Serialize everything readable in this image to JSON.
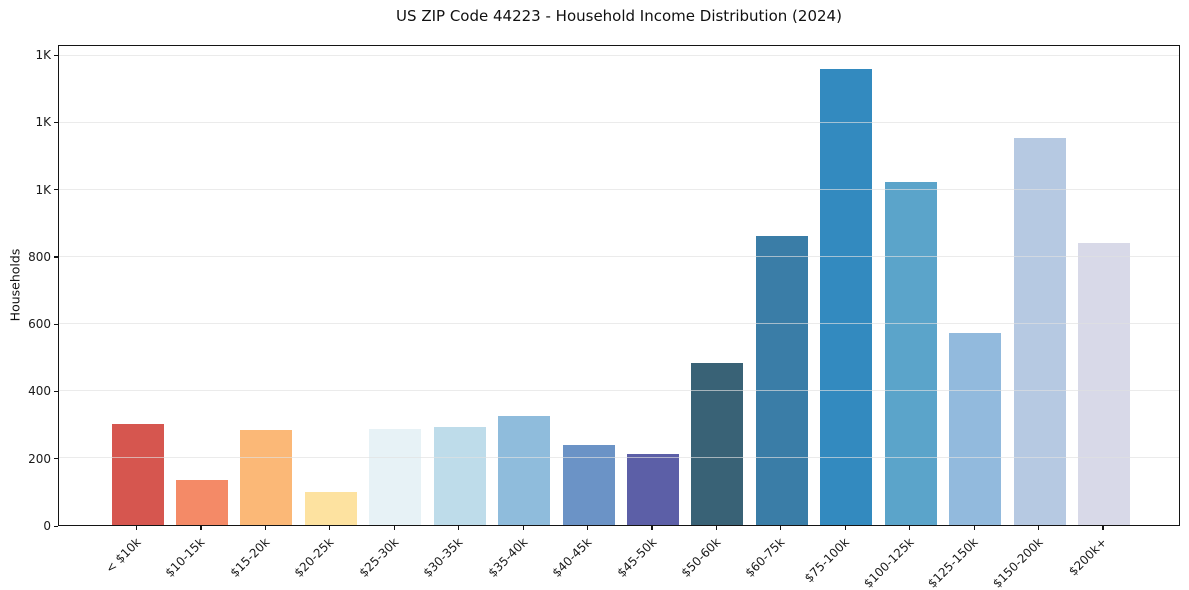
{
  "chart_data": {
    "type": "bar",
    "title": "US ZIP Code 44223 - Household Income Distribution (2024)",
    "xlabel": "",
    "ylabel": "Households",
    "categories": [
      "< $10k",
      "$10-15k",
      "$15-20k",
      "$20-25k",
      "$25-30k",
      "$30-35k",
      "$35-40k",
      "$40-45k",
      "$45-50k",
      "$50-60k",
      "$60-75k",
      "$75-100k",
      "$100-125k",
      "$125-150k",
      "$150-200k",
      "$200k+"
    ],
    "values": [
      302,
      135,
      284,
      98,
      287,
      292,
      324,
      240,
      212,
      483,
      864,
      1362,
      1025,
      573,
      1155,
      843
    ],
    "bar_colors": [
      "#d6564f",
      "#f48a67",
      "#fbb877",
      "#fde2a0",
      "#e7f2f6",
      "#bedcea",
      "#8fbcdc",
      "#6b93c6",
      "#5c5fa7",
      "#396276",
      "#3a7da7",
      "#338abf",
      "#5ba4ca",
      "#92badd",
      "#b6c9e2",
      "#d8d9e8"
    ],
    "ylim": [
      0,
      1430
    ],
    "yticks": [
      {
        "value": 0,
        "label": "0"
      },
      {
        "value": 200,
        "label": "200"
      },
      {
        "value": 400,
        "label": "400"
      },
      {
        "value": 600,
        "label": "600"
      },
      {
        "value": 800,
        "label": "800"
      },
      {
        "value": 1000,
        "label": "1K"
      },
      {
        "value": 1200,
        "label": "1K"
      },
      {
        "value": 1400,
        "label": "1K"
      }
    ],
    "grid": "horizontal",
    "legend": "none",
    "bar_width_ratio": 0.8
  }
}
